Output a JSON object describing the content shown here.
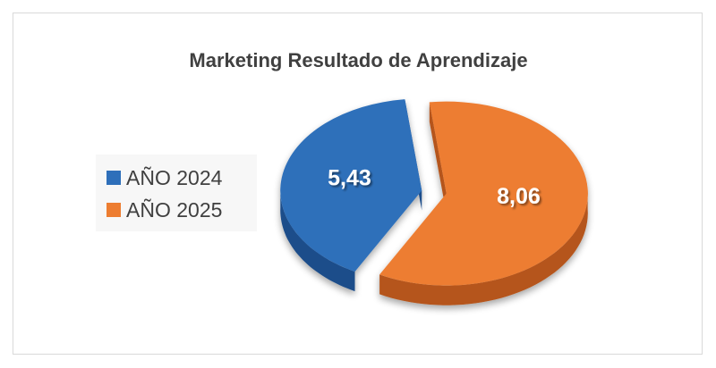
{
  "chart_data": {
    "type": "pie",
    "style": "3d-exploded",
    "title": "Marketing Resultado de Aprendizaje",
    "categories": [
      "AÑO 2024",
      "AÑO 2025"
    ],
    "values": [
      5.43,
      8.06
    ],
    "data_labels": [
      "5,43",
      "8,06"
    ],
    "colors": [
      "#2e6fba",
      "#ed7d31"
    ],
    "side_colors": [
      "#1f4e8a",
      "#b5541a"
    ],
    "legend_position": "left"
  }
}
